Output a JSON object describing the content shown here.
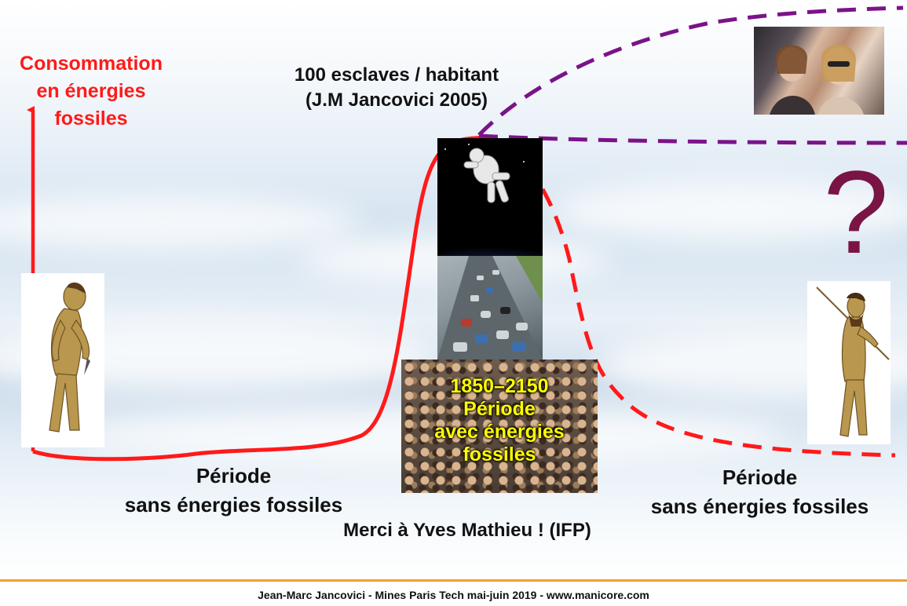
{
  "y_axis_label": [
    "Consommation",
    "en énergies",
    "fossiles"
  ],
  "top_annotation": [
    "100 esclaves / habitant",
    "(J.M Jancovici 2005)"
  ],
  "crowd_label": [
    "1850–2150",
    "Période",
    "avec énergies",
    "fossiles"
  ],
  "left_period": [
    "Période",
    "sans énergies fossiles"
  ],
  "right_period": [
    "Période",
    "sans énergies fossiles"
  ],
  "thanks": "Merci à Yves Mathieu ! (IFP)",
  "question_mark": "?",
  "footer": "Jean-Marc Jancovici - Mines Paris Tech mai-juin 2019 - www.manicore.com",
  "colors": {
    "axis_red": "#ff1a1a",
    "curve_red": "#ff1a1a",
    "dashed_purple": "#7b1388",
    "question_mark": "#7a1445",
    "crowd_label": "#ffff00",
    "footer_rule": "#f0a030"
  }
}
